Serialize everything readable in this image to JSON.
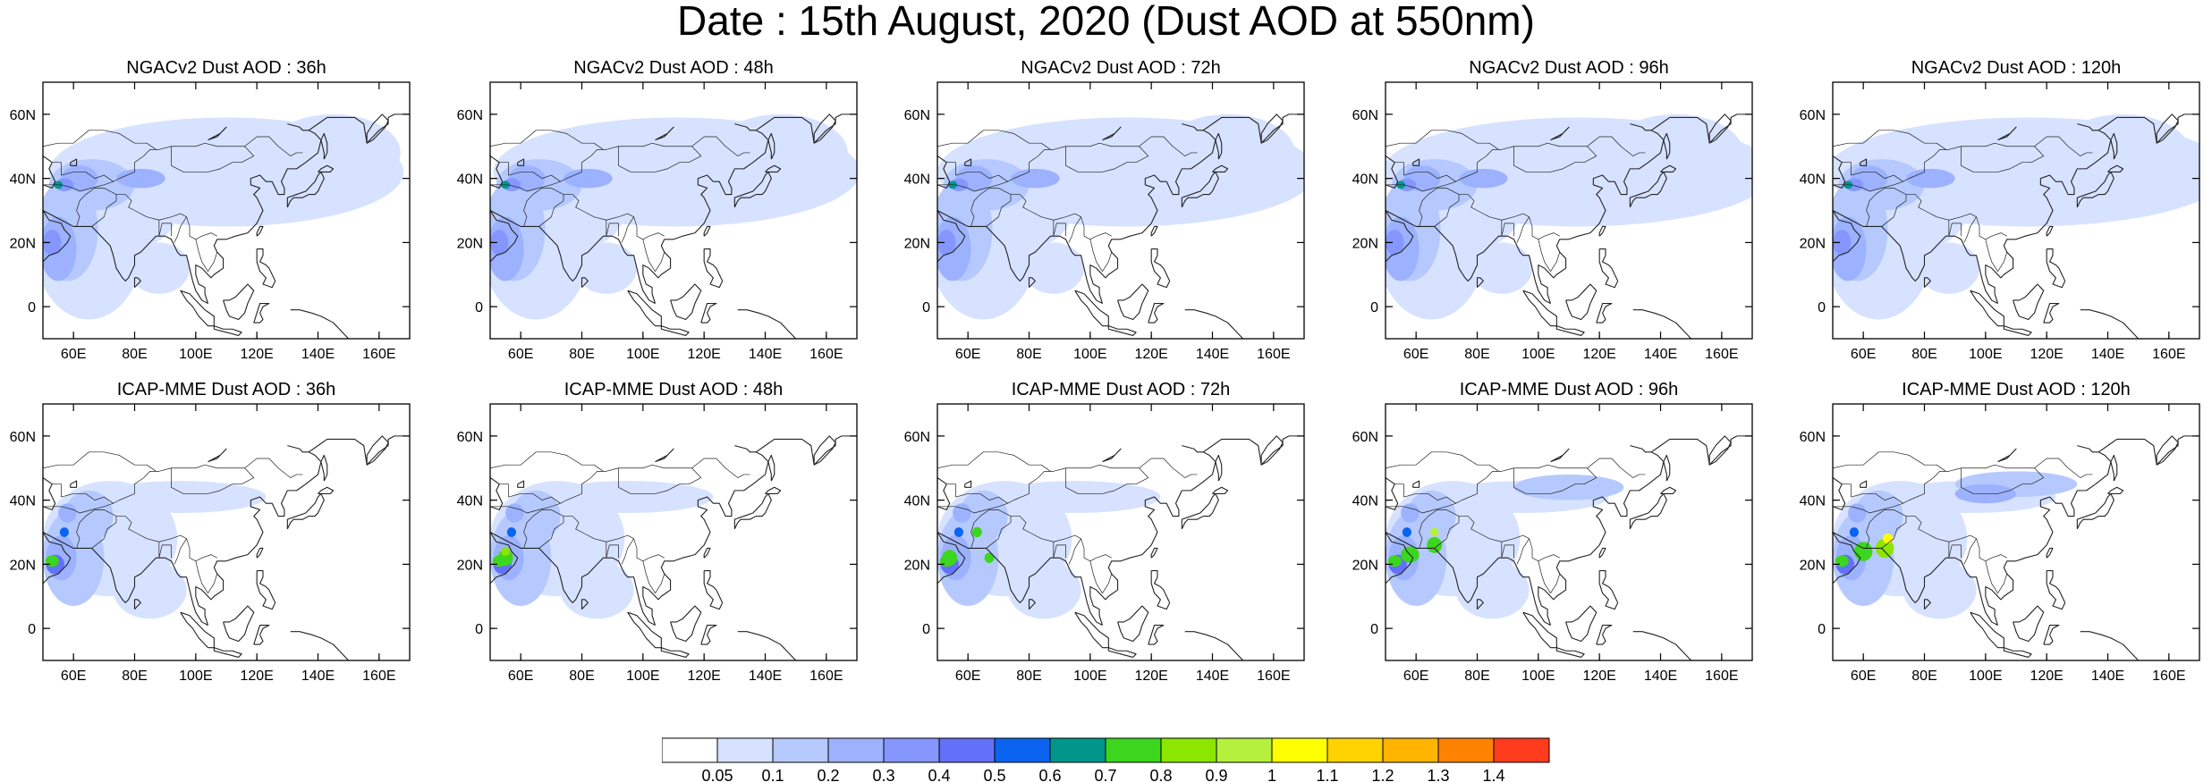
{
  "title": "Date : 15th August, 2020 (Dust AOD at 550nm)",
  "panels": [
    {
      "title": "NGACv2 Dust AOD : 36h",
      "model": "NGACv2",
      "lead": "36h"
    },
    {
      "title": "NGACv2 Dust AOD : 48h",
      "model": "NGACv2",
      "lead": "48h"
    },
    {
      "title": "NGACv2 Dust AOD : 72h",
      "model": "NGACv2",
      "lead": "72h"
    },
    {
      "title": "NGACv2 Dust AOD : 96h",
      "model": "NGACv2",
      "lead": "96h"
    },
    {
      "title": "NGACv2 Dust AOD : 120h",
      "model": "NGACv2",
      "lead": "120h"
    },
    {
      "title": "ICAP-MME Dust AOD : 36h",
      "model": "ICAP-MME",
      "lead": "36h"
    },
    {
      "title": "ICAP-MME Dust AOD : 48h",
      "model": "ICAP-MME",
      "lead": "48h"
    },
    {
      "title": "ICAP-MME Dust AOD : 72h",
      "model": "ICAP-MME",
      "lead": "72h"
    },
    {
      "title": "ICAP-MME Dust AOD : 96h",
      "model": "ICAP-MME",
      "lead": "96h"
    },
    {
      "title": "ICAP-MME Dust AOD : 120h",
      "model": "ICAP-MME",
      "lead": "120h"
    }
  ],
  "map": {
    "lon_range": [
      50,
      170
    ],
    "lat_range": [
      -10,
      70
    ],
    "lon_ticks": [
      60,
      80,
      100,
      120,
      140,
      160
    ],
    "lon_tick_labels": [
      "60E",
      "80E",
      "100E",
      "120E",
      "140E",
      "160E"
    ],
    "lat_ticks": [
      0,
      20,
      40,
      60
    ],
    "lat_tick_labels": [
      "0",
      "20N",
      "40N",
      "60N"
    ]
  },
  "colorbar": {
    "labels": [
      "0.05",
      "0.1",
      "0.2",
      "0.3",
      "0.4",
      "0.5",
      "0.6",
      "0.7",
      "0.8",
      "0.9",
      "1",
      "1.1",
      "1.2",
      "1.3",
      "1.4"
    ],
    "colors": [
      "#ffffff",
      "#d6e2ff",
      "#b5c9ff",
      "#9cb2ff",
      "#8597ff",
      "#6370f8",
      "#0a64f0",
      "#00968c",
      "#3cd61e",
      "#8ce600",
      "#b4f03c",
      "#ffff00",
      "#ffd200",
      "#ffb400",
      "#ff8200",
      "#ff3c1e"
    ]
  }
}
